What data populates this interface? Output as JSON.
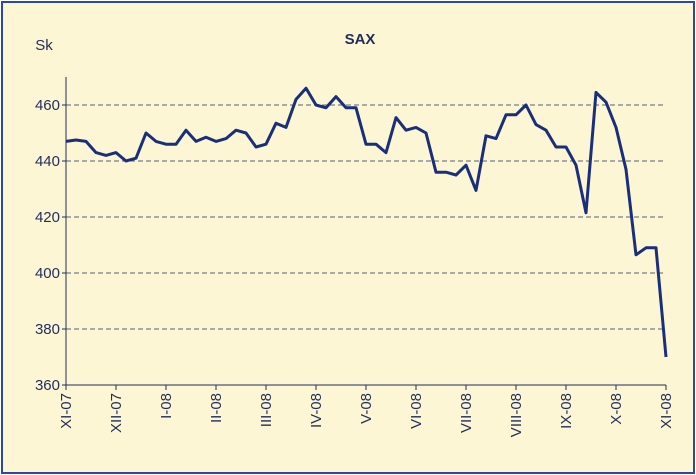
{
  "chart_data": {
    "type": "line",
    "title": "SAX",
    "y_label": "Sk",
    "categories": [
      "XI-07",
      null,
      null,
      null,
      null,
      "XII-07",
      null,
      null,
      null,
      null,
      "I-08",
      null,
      null,
      null,
      null,
      "II-08",
      null,
      null,
      null,
      null,
      "III-08",
      null,
      null,
      null,
      null,
      "IV-08",
      null,
      null,
      null,
      null,
      "V-08",
      null,
      null,
      null,
      null,
      "VI-08",
      null,
      null,
      null,
      null,
      "VII-08",
      null,
      null,
      null,
      null,
      "VIII-08",
      null,
      null,
      null,
      null,
      "IX-08",
      null,
      null,
      null,
      null,
      "X-08",
      null,
      null,
      null,
      null,
      "XI-08"
    ],
    "series": [
      {
        "name": "SAX",
        "color": "#1a2f7a",
        "values": [
          447,
          447.5,
          447,
          443,
          442,
          443,
          440,
          441,
          450,
          447,
          446,
          446,
          451,
          447,
          448.5,
          447,
          448,
          451,
          450,
          445,
          446,
          453.5,
          452,
          462,
          466,
          460,
          459,
          463,
          459,
          459,
          446,
          446,
          443,
          455.5,
          451,
          452,
          450,
          436,
          436,
          435,
          438.5,
          429.5,
          449,
          448,
          456.5,
          456.5,
          460,
          453,
          451,
          445,
          445,
          438.5,
          421.5,
          464.5,
          461,
          452,
          437,
          406.5,
          409,
          409,
          370
        ]
      }
    ],
    "ylim": [
      360,
      470
    ],
    "yticks": [
      360,
      380,
      400,
      420,
      440,
      460
    ],
    "grid": true
  }
}
